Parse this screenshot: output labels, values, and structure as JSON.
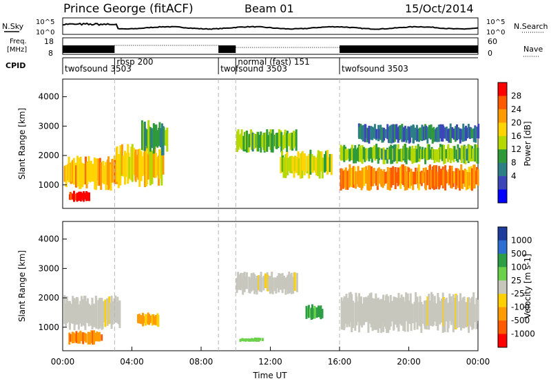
{
  "header": {
    "station": "Prince George (fitACF)",
    "beam": "Beam 01",
    "date": "15/Oct/2014"
  },
  "top_strips": {
    "nsky_label": "N.Sky",
    "nsky_ticks": [
      "10^5",
      "10^0"
    ],
    "nsearch_label": "N.Search",
    "nsearch_ticks": [
      "10^5",
      "10^0"
    ],
    "freq_label_line1": "Freq.",
    "freq_label_line2": "[MHz]",
    "freq_ticks": [
      "18",
      "8"
    ],
    "nave_label": "Nave",
    "nave_ticks": [
      "60",
      "0"
    ],
    "cpid_label": "CPID"
  },
  "cpid_segments": [
    {
      "label": "twofsound 3503",
      "start_hour": 0,
      "end_hour": 3.0
    },
    {
      "label": "rbsp 200",
      "start_hour": 3.0,
      "end_hour": 9.0
    },
    {
      "label": "twofsound 3503",
      "start_hour": 9.0,
      "end_hour": 10.0
    },
    {
      "label": "normal (fast) 151",
      "start_hour": 10.0,
      "end_hour": 16.0
    },
    {
      "label": "twofsound 3503",
      "start_hour": 16.0,
      "end_hour": 24.0
    }
  ],
  "dashed_markers_hours": [
    3.0,
    9.0,
    10.0,
    16.0
  ],
  "x_axis": {
    "label": "Time UT",
    "ticks": [
      "00:00",
      "04:00",
      "08:00",
      "12:00",
      "16:00",
      "20:00",
      "00:00"
    ],
    "range_hours": [
      0,
      24
    ]
  },
  "chart_data": [
    {
      "type": "heatmap",
      "panel": "power",
      "ylabel": "Slant Range [km]",
      "ylim": [
        200,
        4600
      ],
      "yticks": [
        "1000",
        "2000",
        "3000",
        "4000"
      ],
      "colorbar": {
        "label": "Power [dB]",
        "ticks": [
          "28",
          "24",
          "20",
          "16",
          "12",
          "8",
          "4"
        ],
        "colors": [
          "#ff0000",
          "#ff5a00",
          "#ff9a00",
          "#ffd400",
          "#b5d800",
          "#2f9a3a",
          "#2c7f84",
          "#3b47b9",
          "#0000ff"
        ]
      },
      "regions": [
        {
          "t0": 0.0,
          "t1": 3.3,
          "r0": 800,
          "r1": 2000,
          "level": 20
        },
        {
          "t0": 0.3,
          "t1": 1.5,
          "r0": 400,
          "r1": 800,
          "level": 28
        },
        {
          "t0": 3.0,
          "t1": 5.8,
          "r0": 900,
          "r1": 2400,
          "level": 18
        },
        {
          "t0": 4.5,
          "t1": 6.0,
          "r0": 2000,
          "r1": 3200,
          "level": 10
        },
        {
          "t0": 10.0,
          "t1": 13.5,
          "r0": 2100,
          "r1": 2900,
          "level": 12
        },
        {
          "t0": 12.5,
          "t1": 15.5,
          "r0": 1200,
          "r1": 2200,
          "level": 15
        },
        {
          "t0": 16.0,
          "t1": 24.0,
          "r0": 800,
          "r1": 1700,
          "level": 22
        },
        {
          "t0": 16.0,
          "t1": 24.0,
          "r0": 1700,
          "r1": 2400,
          "level": 12
        },
        {
          "t0": 17.0,
          "t1": 24.0,
          "r0": 2400,
          "r1": 3100,
          "level": 6
        }
      ]
    },
    {
      "type": "heatmap",
      "panel": "velocity",
      "ylabel": "Slant Range [km]",
      "ylim": [
        200,
        4600
      ],
      "yticks": [
        "1000",
        "2000",
        "3000",
        "4000"
      ],
      "colorbar": {
        "label": "Velocity [m s-1]",
        "ticks": [
          "1000",
          "500",
          "100",
          "25",
          "-25",
          "-100",
          "-500",
          "-1000"
        ],
        "colors": [
          "#1e3c9c",
          "#2c6fd1",
          "#2e9e46",
          "#6cd14a",
          "#c7c7bd",
          "#ffd000",
          "#ff9a00",
          "#ff5a00",
          "#ff0000"
        ]
      },
      "regions": [
        {
          "t0": 0.0,
          "t1": 3.3,
          "r0": 900,
          "r1": 2100,
          "velocity": 0
        },
        {
          "t0": 0.3,
          "t1": 2.2,
          "r0": 400,
          "r1": 900,
          "velocity": -300
        },
        {
          "t0": 4.3,
          "t1": 5.5,
          "r0": 1000,
          "r1": 1500,
          "velocity": -200
        },
        {
          "t0": 10.0,
          "t1": 13.5,
          "r0": 2100,
          "r1": 2900,
          "velocity": 0
        },
        {
          "t0": 14.0,
          "t1": 15.0,
          "r0": 1200,
          "r1": 1800,
          "velocity": 300
        },
        {
          "t0": 16.0,
          "t1": 24.0,
          "r0": 800,
          "r1": 2200,
          "velocity": 0
        },
        {
          "t0": 10.2,
          "t1": 11.5,
          "r0": 500,
          "r1": 650,
          "velocity": 80
        }
      ]
    }
  ]
}
